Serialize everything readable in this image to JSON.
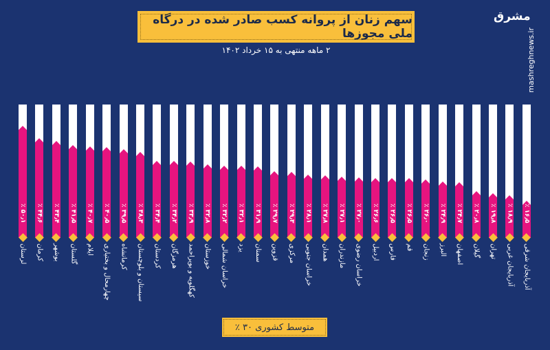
{
  "header": {
    "title": "سهم زنان از پروانه کسب صادر شده در درگاه ملی مجوزها",
    "subtitle": "۲ ماهه منتهی به ۱۵ خرداد ۱۴۰۲"
  },
  "branding": {
    "logo": "مشرق",
    "site": "mashreghnews.ir"
  },
  "footer": {
    "average": "متوسط کشوری ۳۰ ٪"
  },
  "colors": {
    "background": "#1b3370",
    "bar": "#e6147f",
    "accent": "#f9bf3b",
    "column": "#ffffff"
  },
  "chart_data": {
    "type": "bar",
    "title": "سهم زنان از پروانه کسب صادر شده در درگاه ملی مجوزها",
    "subtitle": "۲ ماهه منتهی به ۱۵ خرداد ۱۴۰۲",
    "unit": "%",
    "categories": [
      "لرستان",
      "کرمان",
      "بوشهر",
      "گلستان",
      "ایلام",
      "چهارمحال و بختیاری",
      "کرمانشاه",
      "سیستان و بلوچستان",
      "کردستان",
      "هرمزگان",
      "کهگلویه و بویراحمد",
      "خوزستان",
      "خراسان شمالی",
      "یزد",
      "سمنان",
      "قزوین",
      "مرکزی",
      "خراسان جنوبی",
      "همدان",
      "مازندران",
      "خراسان رضوی",
      "اردبیل",
      "فارس",
      "قم",
      "زنجان",
      "البرز",
      "اصفهان",
      "گیلان",
      "تهران",
      "آذربایجان غربی",
      "آذربایجان شرقی"
    ],
    "values": [
      50.1,
      44.6,
      43.4,
      41.5,
      40.7,
      40.5,
      39.5,
      38.3,
      34.4,
      34.2,
      33.9,
      32.8,
      32.2,
      32.1,
      31.9,
      29.7,
      29.3,
      28.1,
      27.8,
      27.1,
      27.0,
      26.6,
      26.5,
      26.5,
      26.0,
      24.9,
      24.7,
      20.8,
      19.8,
      18.9,
      16.5
    ],
    "value_labels": [
      "٪ ۵۰٫۱",
      "٪ ۴۴٫۶",
      "٪ ۴۳٫۴",
      "٪ ۴۱٫۵",
      "٪ ۴۰٫۷",
      "٪ ۴۰٫۵",
      "٪ ۳۹٫۵",
      "٪ ۳۸٫۳",
      "٪ ۳۴٫۴",
      "٪ ۳۴٫۲",
      "٪ ۳۳٫۹",
      "٪ ۳۲٫۸",
      "٪ ۳۲٫۲",
      "٪ ۳۲٫۱",
      "٪ ۳۱٫۹",
      "٪ ۲۹٫۷",
      "٪ ۲۹٫۳",
      "٪ ۲۸٫۱",
      "٪ ۲۷٫۸",
      "٪ ۲۷٫۱",
      "٪ ۲۷٫۰",
      "٪ ۲۶٫۶",
      "٪ ۲۶٫۵",
      "٪ ۲۶٫۵",
      "٪ ۲۶٫۰",
      "٪ ۲۴٫۹",
      "٪ ۲۴٫۷",
      "٪ ۲۰٫۸",
      "٪ ۱۹٫۸",
      "٪ ۱۸٫۹",
      "٪ ۱۶٫۵"
    ],
    "average": 30,
    "ylim": [
      0,
      60
    ],
    "grid": false,
    "legend": "none"
  }
}
